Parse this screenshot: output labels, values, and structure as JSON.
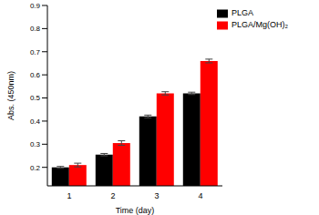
{
  "chart_data": {
    "type": "bar",
    "x_label": "Time (day)",
    "y_label": "Abs. (450nm)",
    "categories": [
      "1",
      "2",
      "3",
      "4"
    ],
    "series": [
      {
        "name": "PLGA",
        "color": "#000000",
        "values": [
          0.2,
          0.255,
          0.42,
          0.52
        ],
        "errors": [
          0.004,
          0.005,
          0.006,
          0.005
        ]
      },
      {
        "name": "PLGA/Mg(OH)₂",
        "color": "#ff0000",
        "values": [
          0.21,
          0.305,
          0.52,
          0.66
        ],
        "errors": [
          0.008,
          0.01,
          0.007,
          0.008
        ]
      }
    ],
    "ylim": [
      0.12,
      0.9
    ],
    "yticks": [
      0.2,
      0.3,
      0.4,
      0.5,
      0.6,
      0.7,
      0.8,
      0.9
    ],
    "legend": "upper right"
  }
}
